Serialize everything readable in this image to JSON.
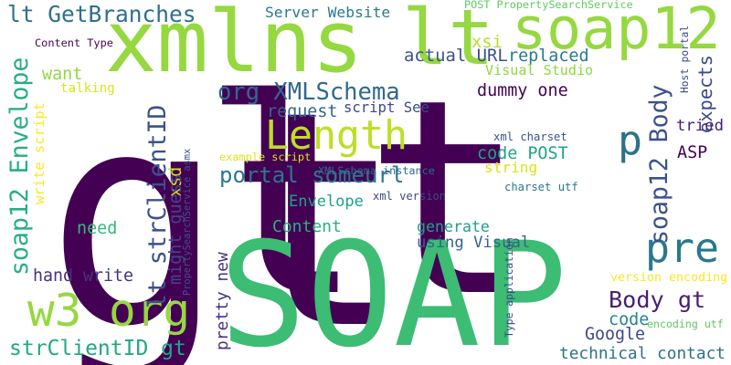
{
  "words": [
    {
      "text": "gt",
      "color": "#440154"
    },
    {
      "text": "lt",
      "color": "#440154"
    },
    {
      "text": "SOAP",
      "color": "#3dbc74"
    },
    {
      "text": "xmlns",
      "color": "#95d840"
    },
    {
      "text": "soap12",
      "color": "#95d840"
    },
    {
      "text": "lt",
      "color": "#95d840"
    },
    {
      "text": "Length",
      "color": "#bddf26"
    },
    {
      "text": "w3 org",
      "color": "#95d840"
    },
    {
      "text": "pre",
      "color": "#2a788e"
    },
    {
      "text": "p",
      "color": "#2d708e"
    },
    {
      "text": "lt GetBranches",
      "color": "#2d708e"
    },
    {
      "text": "soap12 Envelope",
      "color": "#29af7f"
    },
    {
      "text": "org XMLSchema",
      "color": "#31688e"
    },
    {
      "text": "portal someurl",
      "color": "#2a788e"
    },
    {
      "text": "soap12 Body",
      "color": "#3b528b"
    },
    {
      "text": "Body gt",
      "color": "#481f70"
    },
    {
      "text": "lt strClientID",
      "color": "#3b528b"
    },
    {
      "text": "strClientID gt",
      "color": "#22a884"
    },
    {
      "text": "Server Website",
      "color": "#2a788e"
    },
    {
      "text": "xsi",
      "color": "#b5de2b"
    },
    {
      "text": "actual URL",
      "color": "#3b528b"
    },
    {
      "text": "replaced",
      "color": "#2a788e"
    },
    {
      "text": "Visual Studio",
      "color": "#8fd744"
    },
    {
      "text": "dummy one",
      "color": "#440154"
    },
    {
      "text": "want",
      "color": "#8fd744"
    },
    {
      "text": "talking",
      "color": "#dde318"
    },
    {
      "text": "request",
      "color": "#31688e"
    },
    {
      "text": "script See",
      "color": "#3e4989"
    },
    {
      "text": "expects",
      "color": "#3e4989"
    },
    {
      "text": "tried",
      "color": "#482173"
    },
    {
      "text": "Host portal",
      "color": "#3e4989"
    },
    {
      "text": "ASP",
      "color": "#440154"
    },
    {
      "text": "Envelope",
      "color": "#1fa188"
    },
    {
      "text": "Content",
      "color": "#29af7f"
    },
    {
      "text": "need",
      "color": "#35b779"
    },
    {
      "text": "hand write",
      "color": "#46327e"
    },
    {
      "text": "generate",
      "color": "#1fa188"
    },
    {
      "text": "using Visual",
      "color": "#33638d"
    },
    {
      "text": "code POST",
      "color": "#20a386"
    },
    {
      "text": "string",
      "color": "#dde318"
    },
    {
      "text": "example script",
      "color": "#dde318"
    },
    {
      "text": "xsd",
      "color": "#d0e11c"
    },
    {
      "text": "might guess",
      "color": "#404688"
    },
    {
      "text": "pretty new",
      "color": "#46327e"
    },
    {
      "text": "code",
      "color": "#25858e"
    },
    {
      "text": "Google",
      "color": "#3e4989"
    },
    {
      "text": "technical contact",
      "color": "#2c728e"
    },
    {
      "text": "write script",
      "color": "#fde725"
    },
    {
      "text": "Content Type",
      "color": "#440154"
    },
    {
      "text": "POST PropertySearchService",
      "color": "#5ec962"
    },
    {
      "text": "XMLSchema instance",
      "color": "#31688e"
    },
    {
      "text": "xml version",
      "color": "#3e4989"
    },
    {
      "text": "xml charset",
      "color": "#3b528b"
    },
    {
      "text": "charset utf",
      "color": "#2a788e"
    },
    {
      "text": "PropertySearchService asmx",
      "color": "#3b528b"
    },
    {
      "text": "Type application",
      "color": "#3e4989"
    },
    {
      "text": "version encoding",
      "color": "#fde725"
    },
    {
      "text": "encoding utf",
      "color": "#5ec962"
    }
  ]
}
